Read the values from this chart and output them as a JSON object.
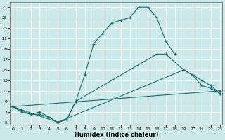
{
  "xlabel": "Humidex (Indice chaleur)",
  "bg_color": "#cce8e8",
  "grid_color": "#ffffff",
  "line_color": "#1a6b6b",
  "xlim": [
    -0.3,
    23.3
  ],
  "ylim": [
    4.5,
    28
  ],
  "xticks": [
    0,
    1,
    2,
    3,
    4,
    5,
    6,
    7,
    8,
    9,
    10,
    11,
    12,
    13,
    14,
    15,
    16,
    17,
    18,
    19,
    20,
    21,
    22,
    23
  ],
  "yticks": [
    5,
    7,
    9,
    11,
    13,
    15,
    17,
    19,
    21,
    23,
    25,
    27
  ],
  "curve1_x": [
    0,
    1,
    2,
    3,
    4,
    5,
    6,
    7,
    8,
    9,
    10,
    11,
    12,
    13,
    14,
    15,
    16,
    17,
    18
  ],
  "curve1_y": [
    8,
    7,
    6.5,
    7,
    6,
    5,
    5.5,
    9,
    14,
    20,
    22,
    24,
    24.5,
    25,
    27,
    27,
    25,
    20.5,
    18
  ],
  "curve2_x": [
    0,
    2,
    3,
    4,
    5,
    6,
    7,
    16,
    17,
    19,
    20,
    21,
    22,
    23
  ],
  "curve2_y": [
    8,
    6.5,
    6.5,
    6,
    5,
    5.5,
    9,
    18,
    18,
    15,
    14,
    12,
    11.5,
    10.5
  ],
  "curve3_x": [
    0,
    5,
    19,
    20,
    21,
    22,
    23
  ],
  "curve3_y": [
    8,
    5,
    15,
    14,
    13,
    12,
    10.5
  ],
  "curve4_x": [
    0,
    23
  ],
  "curve4_y": [
    8,
    11
  ]
}
